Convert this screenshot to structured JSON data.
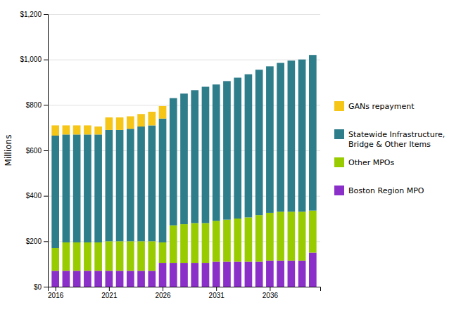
{
  "chart_data": {
    "type": "bar",
    "stacked": true,
    "y_label": "Millions",
    "x": [
      2016,
      2017,
      2018,
      2019,
      2020,
      2021,
      2022,
      2023,
      2024,
      2025,
      2026,
      2027,
      2028,
      2029,
      2030,
      2031,
      2032,
      2033,
      2034,
      2035,
      2036,
      2037,
      2038,
      2039,
      2040
    ],
    "xlim": [
      2015.3,
      2040.7
    ],
    "xticks": [
      2016,
      2021,
      2026,
      2031,
      2036
    ],
    "ylim": [
      0,
      1200
    ],
    "yticks": [
      {
        "value": 0,
        "label": "$0"
      },
      {
        "value": 200,
        "label": "$200"
      },
      {
        "value": 400,
        "label": "$400"
      },
      {
        "value": 600,
        "label": "$600"
      },
      {
        "value": 800,
        "label": "$800"
      },
      {
        "value": 1000,
        "label": "$1,000"
      },
      {
        "value": 1200,
        "label": "$1,200"
      }
    ],
    "grid": true,
    "legend": "right",
    "series": [
      {
        "name": "Boston Region MPO",
        "color": "#8b2fc9",
        "values": [
          70,
          70,
          70,
          70,
          70,
          70,
          70,
          70,
          70,
          70,
          105,
          105,
          105,
          105,
          105,
          110,
          110,
          110,
          110,
          110,
          115,
          115,
          115,
          115,
          150
        ]
      },
      {
        "name": "Other MPOs",
        "color": "#99cc00",
        "values": [
          100,
          125,
          125,
          125,
          125,
          130,
          130,
          130,
          130,
          130,
          90,
          165,
          170,
          175,
          175,
          180,
          185,
          190,
          195,
          205,
          210,
          215,
          215,
          215,
          185
        ]
      },
      {
        "name": "Statewide Infrastructure,\nBridge & Other Items",
        "color": "#2e7d8b",
        "values": [
          495,
          475,
          475,
          475,
          475,
          490,
          490,
          495,
          505,
          510,
          545,
          560,
          575,
          585,
          600,
          600,
          610,
          620,
          630,
          640,
          645,
          655,
          665,
          670,
          685
        ]
      },
      {
        "name": "GANs repayment",
        "color": "#f5c518",
        "values": [
          45,
          40,
          40,
          40,
          35,
          55,
          55,
          55,
          55,
          60,
          55,
          0,
          0,
          0,
          0,
          0,
          0,
          0,
          0,
          0,
          0,
          0,
          0,
          0,
          0
        ]
      }
    ]
  }
}
